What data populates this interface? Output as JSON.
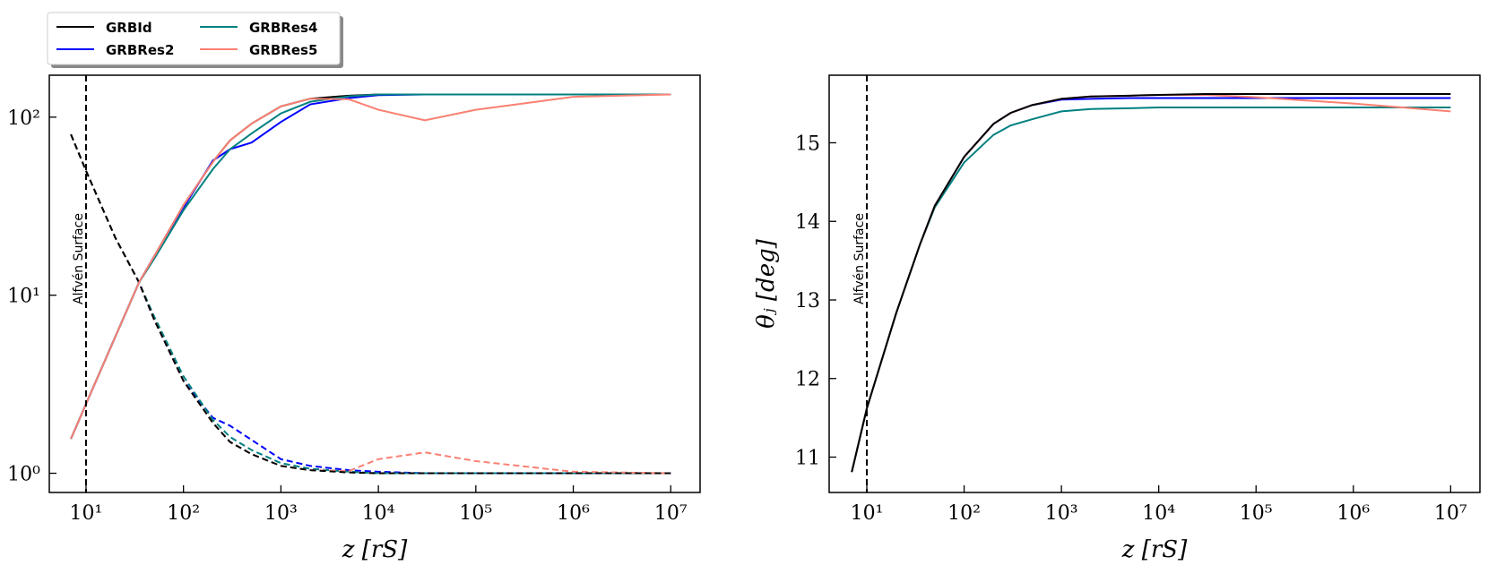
{
  "chart_data": [
    {
      "type": "line",
      "xscale": "log",
      "yscale": "log",
      "xlabel": "z [rS]",
      "xlim": [
        4.2,
        20000000
      ],
      "ylim": [
        0.78,
        172
      ],
      "xticks": [
        {
          "value": 10,
          "label": "10¹"
        },
        {
          "value": 100,
          "label": "10²"
        },
        {
          "value": 1000,
          "label": "10³"
        },
        {
          "value": 10000,
          "label": "10⁴"
        },
        {
          "value": 100000,
          "label": "10⁵"
        },
        {
          "value": 1000000,
          "label": "10⁶"
        },
        {
          "value": 10000000,
          "label": "10⁷"
        }
      ],
      "yticks": [
        {
          "value": 1,
          "label": "10⁰"
        },
        {
          "value": 10,
          "label": "10¹"
        },
        {
          "value": 100,
          "label": "10²"
        }
      ],
      "vline": 10,
      "annotation": "Alfvén Surface",
      "legend": "above",
      "x": [
        7,
        10,
        20,
        35,
        50,
        100,
        200,
        300,
        500,
        1000,
        2000,
        5000,
        10000,
        30000,
        100000,
        1000000,
        10000000
      ],
      "series": [
        {
          "name": "GRBId",
          "color": "#000000",
          "values": [
            1.56,
            2.45,
            5.85,
            11.8,
            16.5,
            32,
            56,
            74,
            92,
            115,
            127,
            132,
            134,
            134,
            134,
            134,
            134
          ]
        },
        {
          "name": "GRBRes2",
          "color": "#0000ff",
          "values": [
            1.56,
            2.45,
            5.85,
            11.8,
            16.5,
            31,
            57,
            66,
            72,
            94,
            118,
            128,
            133,
            134,
            134,
            134,
            134
          ]
        },
        {
          "name": "GRBRes4",
          "color": "#008080",
          "values": [
            1.56,
            2.45,
            5.85,
            11.8,
            16,
            30,
            51,
            66,
            81,
            105,
            122,
            131,
            134,
            134,
            134,
            134,
            134
          ]
        },
        {
          "name": "GRBRes5",
          "color": "#fa8072",
          "values": [
            1.56,
            2.45,
            5.85,
            11.8,
            16.5,
            32,
            56,
            74,
            92,
            115,
            127,
            126,
            110,
            96,
            110,
            130,
            134
          ]
        }
      ],
      "dashed_series": [
        {
          "color": "#0000ff",
          "values": [
            80,
            50,
            21,
            11.8,
            7.3,
            3.3,
            2.05,
            1.85,
            1.54,
            1.2,
            1.1,
            1.04,
            1.02,
            1.0,
            1.0,
            1.0,
            1.0
          ]
        },
        {
          "color": "#008080",
          "values": [
            80,
            50,
            21,
            11.8,
            7.6,
            3.5,
            2.0,
            1.6,
            1.35,
            1.14,
            1.06,
            1.02,
            1.0,
            1.0,
            1.0,
            1.0,
            1.0
          ]
        },
        {
          "color": "#fa8072",
          "values": [
            80,
            50,
            21,
            11.8,
            7.3,
            3.3,
            1.92,
            1.5,
            1.28,
            1.1,
            1.04,
            1.03,
            1.2,
            1.31,
            1.17,
            1.02,
            1.0
          ]
        },
        {
          "color": "#000000",
          "values": [
            80,
            50,
            21,
            11.8,
            7.3,
            3.3,
            1.92,
            1.5,
            1.28,
            1.1,
            1.04,
            1.01,
            1.0,
            1.0,
            1.0,
            1.0,
            1.0
          ]
        }
      ]
    },
    {
      "type": "line",
      "xscale": "log",
      "yscale": "linear",
      "xlabel": "z [rS]",
      "ylabel": "θⱼ [deg]",
      "xlim": [
        4.1,
        20000000
      ],
      "ylim": [
        10.55,
        15.86
      ],
      "xticks": [
        {
          "value": 10,
          "label": "10¹"
        },
        {
          "value": 100,
          "label": "10²"
        },
        {
          "value": 1000,
          "label": "10³"
        },
        {
          "value": 10000,
          "label": "10⁴"
        },
        {
          "value": 100000,
          "label": "10⁵"
        },
        {
          "value": 1000000,
          "label": "10⁶"
        },
        {
          "value": 10000000,
          "label": "10⁷"
        }
      ],
      "yticks": [
        11,
        12,
        13,
        14,
        15
      ],
      "vline": 10,
      "annotation": "Alfvén Surface",
      "x": [
        7,
        10,
        20,
        35,
        50,
        100,
        200,
        300,
        500,
        1000,
        2000,
        5000,
        10000,
        30000,
        100000,
        1000000,
        10000000
      ],
      "series": [
        {
          "color": "#0000ff",
          "values": [
            10.81,
            11.62,
            12.83,
            13.7,
            14.2,
            14.82,
            15.24,
            15.38,
            15.48,
            15.55,
            15.56,
            15.57,
            15.57,
            15.57,
            15.57,
            15.57,
            15.57
          ]
        },
        {
          "color": "#008080",
          "values": [
            10.81,
            11.62,
            12.83,
            13.7,
            14.18,
            14.75,
            15.1,
            15.22,
            15.3,
            15.4,
            15.43,
            15.44,
            15.45,
            15.45,
            15.45,
            15.45,
            15.45
          ]
        },
        {
          "color": "#fa8072",
          "values": [
            10.81,
            11.62,
            12.83,
            13.7,
            14.2,
            14.82,
            15.24,
            15.38,
            15.48,
            15.56,
            15.59,
            15.6,
            15.61,
            15.61,
            15.58,
            15.5,
            15.4
          ]
        },
        {
          "color": "#000000",
          "values": [
            10.81,
            11.62,
            12.83,
            13.7,
            14.2,
            14.82,
            15.24,
            15.38,
            15.48,
            15.56,
            15.59,
            15.6,
            15.61,
            15.62,
            15.62,
            15.62,
            15.62
          ]
        }
      ]
    }
  ]
}
